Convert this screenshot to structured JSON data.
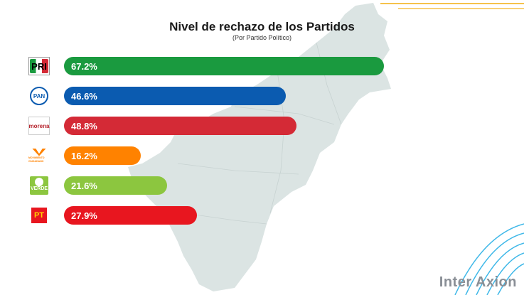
{
  "colors": {
    "map_fill": "#dbe4e3",
    "pri": "#1a9a3f",
    "pan": "#0b5bb0",
    "morena": "#d42a36",
    "mc": "#ff8200",
    "verde": "#8cc63f",
    "pt": "#e8161f"
  },
  "title": "Nivel de rechazo de los Partidos",
  "subtitle": "(Por Partido Político)",
  "brand": "Inter Axion",
  "logos": {
    "pri": "PRI",
    "pan": "PAN",
    "morena": "morena",
    "mc": "MOVIMIENTO CIUDADANO",
    "verde": "VERDE",
    "pt": "PT"
  },
  "chart_data": {
    "type": "bar",
    "orientation": "horizontal",
    "categories": [
      "PRI",
      "PAN",
      "Morena",
      "Movimiento Ciudadano",
      "Verde",
      "PT"
    ],
    "values": [
      67.2,
      46.6,
      48.8,
      16.2,
      21.6,
      27.9
    ],
    "labels": [
      "67.2%",
      "46.6%",
      "48.8%",
      "16.2%",
      "21.6%",
      "27.9%"
    ],
    "unit": "%",
    "xlim": [
      0,
      100
    ],
    "grid": false,
    "legend": "none"
  }
}
